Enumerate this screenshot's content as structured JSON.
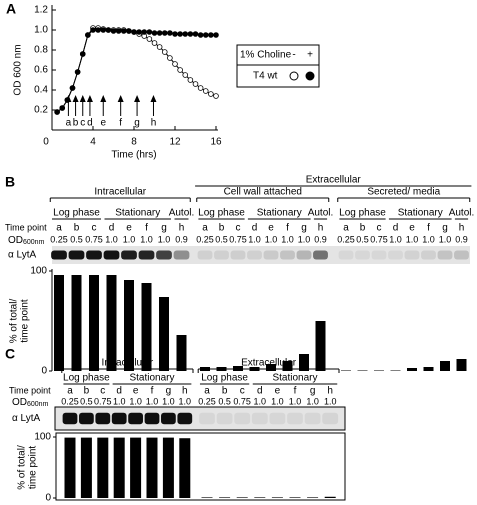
{
  "chart_data": [
    {
      "type": "line",
      "panel": "A",
      "xlabel": "Time (hrs)",
      "ylabel": "OD 600 nm",
      "xlim": [
        0,
        16
      ],
      "ylim": [
        0,
        1.2
      ],
      "xticks": [
        0,
        4,
        8,
        12,
        16
      ],
      "yticks": [
        0.2,
        0.4,
        0.6,
        0.8,
        {
          "value": 1,
          "label": "1.0"
        },
        1.2
      ],
      "x": [
        0.5,
        1,
        1.5,
        2,
        2.5,
        3,
        3.5,
        4,
        4.5,
        5,
        5.5,
        6,
        6.5,
        7,
        7.5,
        8,
        8.5,
        9,
        9.5,
        10,
        10.5,
        11,
        11.5,
        12,
        12.5,
        13,
        13.5,
        14,
        14.5,
        15,
        15.5,
        16
      ],
      "series": [
        {
          "name": "-",
          "marker": "open",
          "color": "#000000",
          "values": [
            0.18,
            0.22,
            0.3,
            0.42,
            0.58,
            0.76,
            0.95,
            1.02,
            1.02,
            1.01,
            1.0,
            1.0,
            1.0,
            1.0,
            0.99,
            0.98,
            0.96,
            0.94,
            0.91,
            0.87,
            0.83,
            0.78,
            0.72,
            0.66,
            0.6,
            0.55,
            0.5,
            0.46,
            0.42,
            0.39,
            0.36,
            0.34
          ]
        },
        {
          "name": "+",
          "marker": "filled",
          "color": "#000000",
          "values": [
            0.18,
            0.22,
            0.3,
            0.42,
            0.58,
            0.76,
            0.95,
            1.0,
            1.0,
            1.0,
            1.0,
            0.99,
            0.99,
            0.99,
            0.99,
            0.98,
            0.98,
            0.98,
            0.98,
            0.97,
            0.97,
            0.97,
            0.97,
            0.96,
            0.96,
            0.96,
            0.96,
            0.96,
            0.95,
            0.95,
            0.95,
            0.95
          ]
        }
      ],
      "legend": {
        "title": "1% Choline",
        "label": "T4 wt"
      },
      "arrows": {
        "labels": [
          "a",
          "b",
          "c",
          "d",
          "e",
          "f",
          "g",
          "h"
        ],
        "x": [
          1.6,
          2.3,
          3.0,
          3.7,
          5.0,
          6.7,
          8.3,
          9.9
        ]
      }
    },
    {
      "type": "bar",
      "panel": "B",
      "ylabel": [
        "% of total/",
        "time point"
      ],
      "blot_label": "α LytA",
      "time_label": "Time point",
      "od_label": "OD",
      "od_unit": "600nm",
      "ylim": [
        0,
        100
      ],
      "yticks": [
        0,
        100
      ],
      "color": "#000000",
      "super_header": "Extracellular",
      "sections": [
        {
          "title": "Intracellular",
          "phases": [
            "Log phase",
            "Stationary",
            "Autol."
          ],
          "lanes": [
            "a",
            "b",
            "c",
            "d",
            "e",
            "f",
            "g",
            "h"
          ],
          "od": [
            0.25,
            0.5,
            0.75,
            {
              "value": 1,
              "label": "1.0"
            },
            {
              "value": 1,
              "label": "1.0"
            },
            {
              "value": 1,
              "label": "1.0"
            },
            {
              "value": 1,
              "label": "1.0"
            },
            0.9
          ],
          "values": [
            96,
            96,
            96,
            96,
            91,
            88,
            74,
            36
          ]
        },
        {
          "title": "Cell wall attached",
          "phases": [
            "Log phase",
            "Stationary",
            "Autol."
          ],
          "lanes": [
            "a",
            "b",
            "c",
            "d",
            "e",
            "f",
            "g",
            "h"
          ],
          "od": [
            0.25,
            0.5,
            0.75,
            {
              "value": 1,
              "label": "1.0"
            },
            {
              "value": 1,
              "label": "1.0"
            },
            {
              "value": 1,
              "label": "1.0"
            },
            {
              "value": 1,
              "label": "1.0"
            },
            0.9
          ],
          "values": [
            4,
            4,
            5,
            4,
            7,
            10,
            17,
            50
          ]
        },
        {
          "title": "Secreted/ media",
          "phases": [
            "Log phase",
            "Stationary",
            "Autol."
          ],
          "lanes": [
            "a",
            "b",
            "c",
            "d",
            "e",
            "f",
            "g",
            "h"
          ],
          "od": [
            0.25,
            0.5,
            0.75,
            {
              "value": 1,
              "label": "1.0"
            },
            {
              "value": 1,
              "label": "1.0"
            },
            {
              "value": 1,
              "label": "1.0"
            },
            {
              "value": 1,
              "label": "1.0"
            },
            0.9
          ],
          "values": [
            0.5,
            0.5,
            0.5,
            0.5,
            3,
            4,
            10,
            12
          ]
        }
      ]
    },
    {
      "type": "bar",
      "panel": "C",
      "ylabel": [
        "% of total/",
        "time point"
      ],
      "blot_label": "α LytA",
      "time_label": "Time point",
      "od_label": "OD",
      "od_unit": "600nm",
      "ylim": [
        0,
        100
      ],
      "yticks": [
        0,
        100
      ],
      "color": "#000000",
      "sections": [
        {
          "title": "Intracellular",
          "phases": [
            "Log phase",
            "Stationary"
          ],
          "lanes": [
            "a",
            "b",
            "c",
            "d",
            "e",
            "f",
            "g",
            "h"
          ],
          "od": [
            0.25,
            0.5,
            0.75,
            {
              "value": 1,
              "label": "1.0"
            },
            {
              "value": 1,
              "label": "1.0"
            },
            {
              "value": 1,
              "label": "1.0"
            },
            {
              "value": 1,
              "label": "1.0"
            },
            {
              "value": 1,
              "label": "1.0"
            }
          ],
          "values": [
            99,
            99,
            99,
            99,
            99,
            99,
            99,
            98
          ]
        },
        {
          "title": "Extracellular",
          "phases": [
            "Log phase",
            "Stationary"
          ],
          "lanes": [
            "a",
            "b",
            "c",
            "d",
            "e",
            "f",
            "g",
            "h"
          ],
          "od": [
            0.25,
            0.5,
            0.75,
            {
              "value": 1,
              "label": "1.0"
            },
            {
              "value": 1,
              "label": "1.0"
            },
            {
              "value": 1,
              "label": "1.0"
            },
            {
              "value": 1,
              "label": "1.0"
            },
            {
              "value": 1,
              "label": "1.0"
            }
          ],
          "values": [
            1,
            1,
            1,
            1,
            1,
            1,
            1,
            2
          ]
        }
      ]
    }
  ]
}
